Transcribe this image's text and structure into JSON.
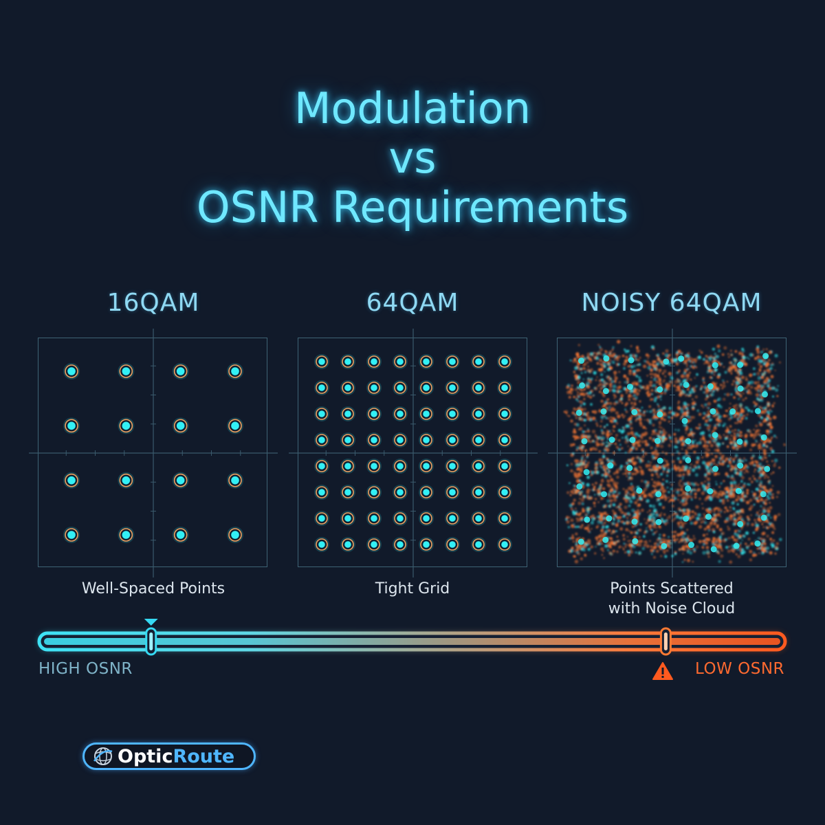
{
  "title": {
    "line1": "Modulation",
    "line2": "vs",
    "line3": "OSNR Requirements"
  },
  "panels": [
    {
      "title": "16QAM",
      "caption_lines": [
        "Well-Spaced Points"
      ],
      "grid": 4,
      "noisy": false
    },
    {
      "title": "64QAM",
      "caption_lines": [
        "Tight Grid"
      ],
      "grid": 8,
      "noisy": false
    },
    {
      "title": "NOISY 64QAM",
      "caption_lines": [
        "Points Scattered",
        "with Noise Cloud"
      ],
      "grid": 8,
      "noisy": true
    }
  ],
  "scale": {
    "left_label": "HIGH OSNR",
    "right_label": "LOW OSNR",
    "high_marker_fraction": 0.15,
    "low_marker_fraction": 0.84
  },
  "logo": {
    "part1": "Optic",
    "part2": "Route",
    "icon": "globe-icon"
  },
  "colors": {
    "background": "#111a2a",
    "title": "#6fe8ff",
    "point": "#33f0f5",
    "ring": "#f0a060",
    "noise": "#ff7a33",
    "high": "#36d9f2",
    "low": "#ff5a1f",
    "logo_blue": "#4fb6ff"
  }
}
